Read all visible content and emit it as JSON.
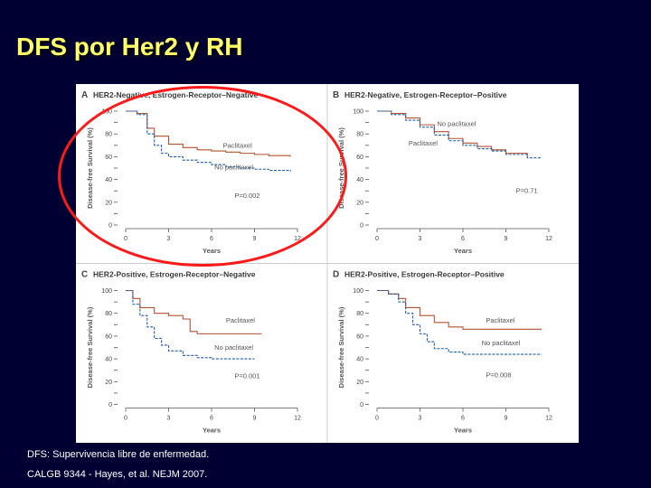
{
  "slide": {
    "title": "DFS por Her2 y RH",
    "footnote1": "DFS: Supervivencia libre de enfermedad.",
    "footnote2": "CALGB 9344 - Hayes, et al. NEJM 2007."
  },
  "colors": {
    "paclitaxel": "#b5522e",
    "no_paclitaxel": "#1f5fae",
    "highlight": "#ff1a1a",
    "title": "#ffff66"
  },
  "chart_data": [
    {
      "type": "line",
      "panel": "A",
      "title": "HER2-Negative, Estrogen-Receptor–Negative",
      "xlabel": "Years",
      "ylabel": "Disease-free Survival (%)",
      "xlim": [
        0,
        12
      ],
      "ylim": [
        0,
        100
      ],
      "xticks": [
        "0",
        "3",
        "6",
        "9",
        "12"
      ],
      "yticks": [
        "0",
        "20",
        "40",
        "60",
        "80",
        "100"
      ],
      "p_value": "P=0.002",
      "series": [
        {
          "name": "Paclitaxel",
          "x": [
            0,
            0.8,
            1.5,
            2,
            3,
            4,
            5,
            6,
            7,
            8,
            9,
            10,
            11.5
          ],
          "y": [
            100,
            98,
            85,
            78,
            71,
            68,
            66,
            65,
            64,
            63,
            62,
            61,
            60
          ]
        },
        {
          "name": "No paclitaxel",
          "x": [
            0,
            0.8,
            1.5,
            2,
            2.5,
            3,
            4,
            5,
            6,
            7,
            8,
            9,
            10,
            11.5
          ],
          "y": [
            100,
            97,
            80,
            70,
            63,
            60,
            57,
            55,
            53,
            51,
            50,
            49,
            48,
            47
          ]
        }
      ],
      "labels": [
        {
          "text": "Paclitaxel",
          "x": 6.8,
          "y": 68
        },
        {
          "text": "No paclitaxel",
          "x": 6.2,
          "y": 49
        },
        {
          "text": "P=0.002",
          "x": 7.6,
          "y": 24
        }
      ]
    },
    {
      "type": "line",
      "panel": "B",
      "title": "HER2-Negative, Estrogen-Receptor–Positive",
      "xlabel": "Years",
      "ylabel": "Disease-free Survival (%)",
      "xlim": [
        0,
        12
      ],
      "ylim": [
        0,
        100
      ],
      "xticks": [
        "0",
        "3",
        "6",
        "9",
        "12"
      ],
      "yticks": [
        "0",
        "20",
        "40",
        "60",
        "80",
        "100"
      ],
      "p_value": "P=0.71",
      "series": [
        {
          "name": "Paclitaxel",
          "x": [
            0,
            1,
            2,
            3,
            4,
            5,
            6,
            7,
            8,
            9,
            10.5
          ],
          "y": [
            100,
            98,
            94,
            88,
            82,
            76,
            72,
            69,
            66,
            63,
            60
          ]
        },
        {
          "name": "No paclitaxel",
          "x": [
            0,
            1,
            2,
            3,
            4,
            5,
            6,
            7,
            8,
            9,
            10.5,
            11.5
          ],
          "y": [
            100,
            97,
            92,
            86,
            79,
            74,
            70,
            67,
            65,
            62,
            59,
            59
          ]
        }
      ],
      "labels": [
        {
          "text": "No paclitaxel",
          "x": 4.2,
          "y": 87
        },
        {
          "text": "Paclitaxel",
          "x": 2.2,
          "y": 70
        },
        {
          "text": "P=0.71",
          "x": 9.7,
          "y": 28
        }
      ]
    },
    {
      "type": "line",
      "panel": "C",
      "title": "HER2-Positive, Estrogen-Receptor–Negative",
      "xlabel": "Years",
      "ylabel": "Disease-free Survival (%)",
      "xlim": [
        0,
        12
      ],
      "ylim": [
        0,
        100
      ],
      "xticks": [
        "0",
        "3",
        "6",
        "9",
        "12"
      ],
      "yticks": [
        "0",
        "20",
        "40",
        "60",
        "80",
        "100"
      ],
      "p_value": "P=0.001",
      "series": [
        {
          "name": "Paclitaxel",
          "x": [
            0,
            0.5,
            1,
            2,
            3,
            4,
            4.5,
            5,
            6,
            8,
            9.5
          ],
          "y": [
            100,
            93,
            85,
            80,
            78,
            75,
            64,
            62,
            62,
            62,
            62
          ]
        },
        {
          "name": "No paclitaxel",
          "x": [
            0,
            0.5,
            1,
            1.5,
            2,
            2.5,
            3,
            4,
            5,
            6,
            7,
            9
          ],
          "y": [
            100,
            88,
            78,
            68,
            58,
            52,
            47,
            43,
            41,
            40,
            40,
            40
          ]
        }
      ],
      "labels": [
        {
          "text": "Paclitaxel",
          "x": 7.0,
          "y": 72
        },
        {
          "text": "No paclitaxel",
          "x": 6.2,
          "y": 48
        },
        {
          "text": "P=0.001",
          "x": 7.6,
          "y": 23
        }
      ]
    },
    {
      "type": "line",
      "panel": "D",
      "title": "HER2-Positive, Estrogen-Receptor–Positive",
      "xlabel": "Years",
      "ylabel": "Disease-free Survival (%)",
      "xlim": [
        0,
        12
      ],
      "ylim": [
        0,
        100
      ],
      "xticks": [
        "0",
        "3",
        "6",
        "9",
        "12"
      ],
      "yticks": [
        "0",
        "20",
        "40",
        "60",
        "80",
        "100"
      ],
      "p_value": "P=0.008",
      "series": [
        {
          "name": "Paclitaxel",
          "x": [
            0,
            0.8,
            1.5,
            2,
            3,
            4,
            5,
            6,
            8,
            10,
            11.5
          ],
          "y": [
            100,
            97,
            93,
            85,
            78,
            72,
            68,
            66,
            66,
            66,
            66
          ]
        },
        {
          "name": "No paclitaxel",
          "x": [
            0,
            0.8,
            1.5,
            2,
            2.5,
            3,
            3.5,
            4,
            5,
            6,
            8,
            10,
            11.5
          ],
          "y": [
            100,
            97,
            90,
            80,
            70,
            62,
            55,
            49,
            46,
            44,
            44,
            44,
            44
          ]
        }
      ],
      "labels": [
        {
          "text": "Paclitaxel",
          "x": 7.6,
          "y": 72
        },
        {
          "text": "No paclitaxel",
          "x": 7.3,
          "y": 52
        },
        {
          "text": "P=0.008",
          "x": 7.6,
          "y": 24
        }
      ]
    }
  ]
}
